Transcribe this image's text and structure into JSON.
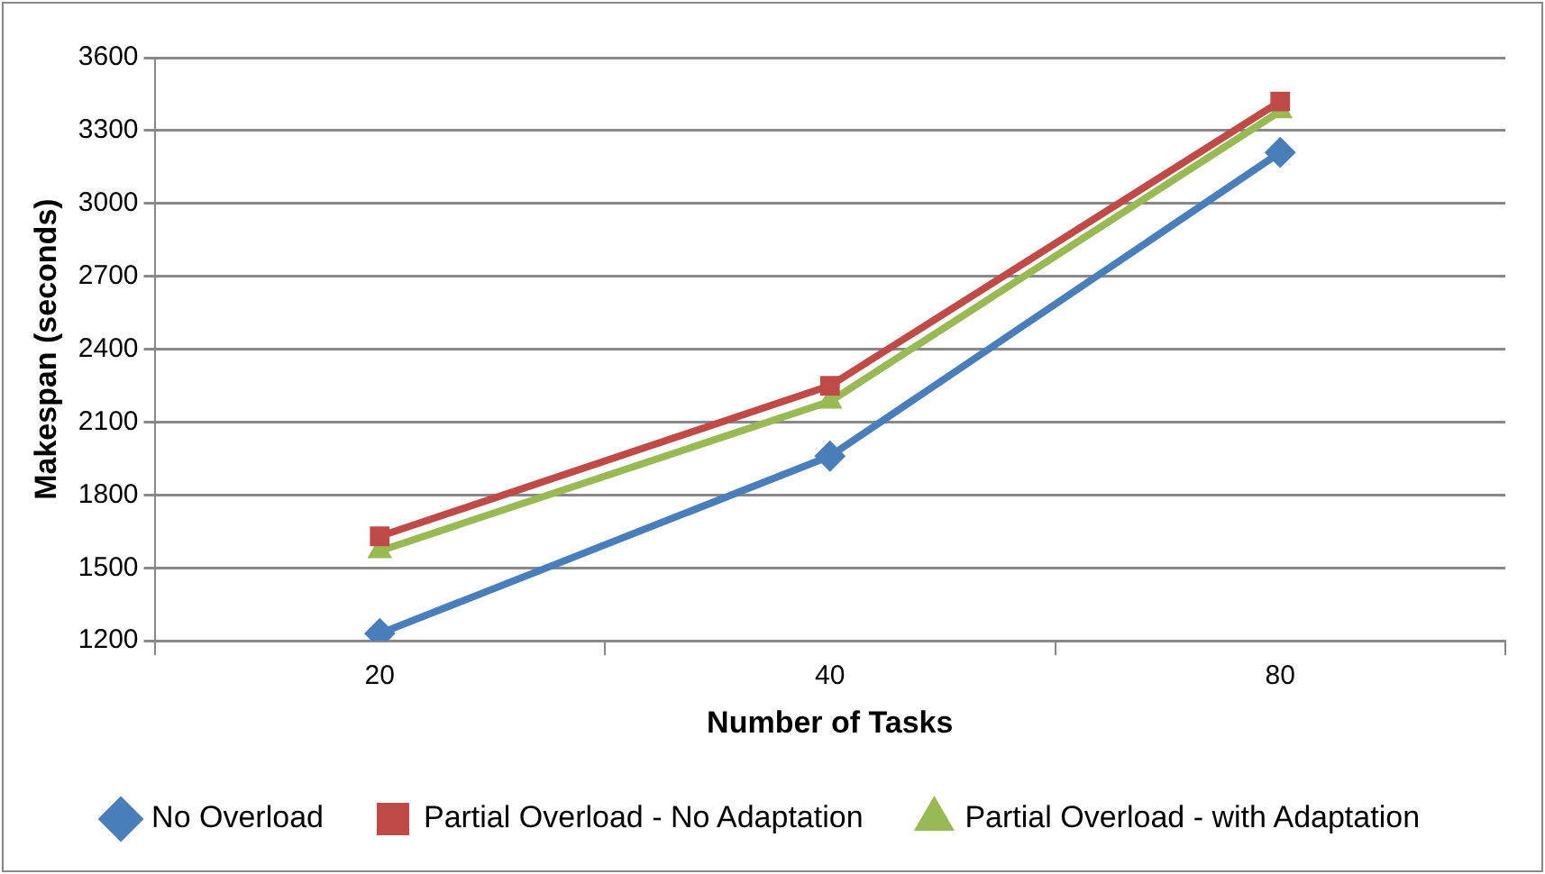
{
  "chart_data": {
    "type": "line",
    "xlabel": "Number of Tasks",
    "ylabel": "Makespan (seconds)",
    "categories": [
      "20",
      "40",
      "80"
    ],
    "series": [
      {
        "name": "No Overload",
        "color": "#4a7ebb",
        "marker": "diamond",
        "values": [
          1230,
          1960,
          3210
        ]
      },
      {
        "name": "Partial Overload - No Adaptation",
        "color": "#be4b48",
        "marker": "square",
        "values": [
          1630,
          2250,
          3420
        ]
      },
      {
        "name": "Partial Overload - with Adaptation",
        "color": "#98b954",
        "marker": "triangle",
        "values": [
          1570,
          2185,
          3380
        ]
      }
    ],
    "ylim": [
      1200,
      3600
    ],
    "yticks": [
      1200,
      1500,
      1800,
      2100,
      2400,
      2700,
      3000,
      3300,
      3600
    ],
    "grid": "y",
    "legend": "bottom",
    "line_style": "solid"
  }
}
